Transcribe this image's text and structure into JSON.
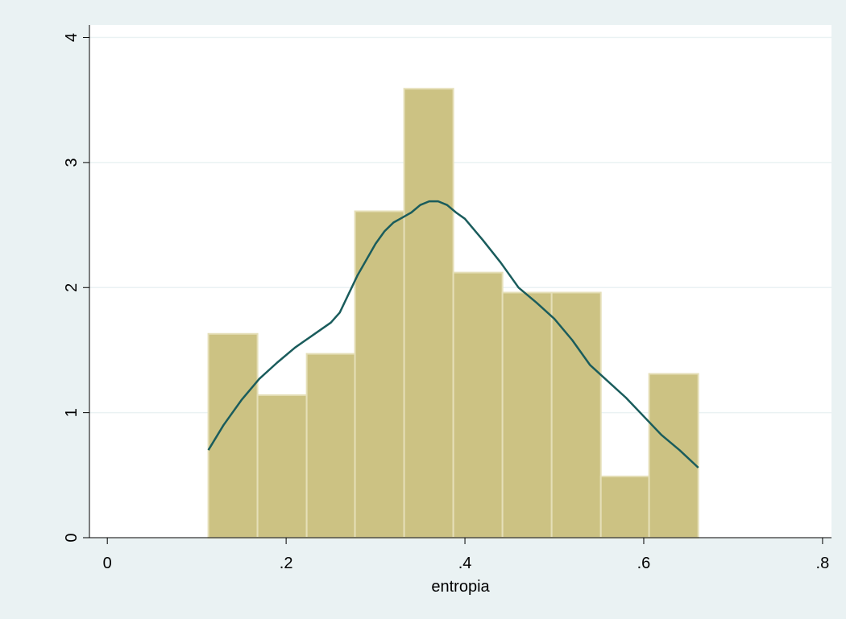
{
  "chart_data": {
    "type": "bar",
    "subtype": "histogram-with-density",
    "title": "",
    "xlabel": "entropia",
    "ylabel": "",
    "xlim": [
      -0.02,
      0.81
    ],
    "ylim": [
      0,
      4.1
    ],
    "x_ticks": [
      {
        "value": 0,
        "label": "0"
      },
      {
        "value": 0.2,
        "label": ".2"
      },
      {
        "value": 0.4,
        "label": ".4"
      },
      {
        "value": 0.6,
        "label": ".6"
      },
      {
        "value": 0.8,
        "label": ".8"
      }
    ],
    "y_ticks": [
      {
        "value": 0,
        "label": "0"
      },
      {
        "value": 1,
        "label": "1"
      },
      {
        "value": 2,
        "label": "2"
      },
      {
        "value": 3,
        "label": "3"
      },
      {
        "value": 4,
        "label": "4"
      }
    ],
    "grid": true,
    "legend": "none",
    "bins": [
      {
        "x0": 0.113,
        "x1": 0.168,
        "value": 1.63
      },
      {
        "x0": 0.168,
        "x1": 0.223,
        "value": 1.14
      },
      {
        "x0": 0.223,
        "x1": 0.277,
        "value": 1.47
      },
      {
        "x0": 0.277,
        "x1": 0.332,
        "value": 2.61
      },
      {
        "x0": 0.332,
        "x1": 0.387,
        "value": 3.59
      },
      {
        "x0": 0.387,
        "x1": 0.442,
        "value": 2.12
      },
      {
        "x0": 0.442,
        "x1": 0.497,
        "value": 1.96
      },
      {
        "x0": 0.497,
        "x1": 0.552,
        "value": 1.96
      },
      {
        "x0": 0.552,
        "x1": 0.606,
        "value": 0.49
      },
      {
        "x0": 0.606,
        "x1": 0.661,
        "value": 1.31
      }
    ],
    "density_curve": {
      "x": [
        0.113,
        0.13,
        0.15,
        0.17,
        0.19,
        0.21,
        0.23,
        0.25,
        0.26,
        0.28,
        0.3,
        0.31,
        0.32,
        0.33,
        0.34,
        0.35,
        0.36,
        0.37,
        0.38,
        0.39,
        0.4,
        0.42,
        0.44,
        0.46,
        0.48,
        0.5,
        0.52,
        0.54,
        0.56,
        0.58,
        0.6,
        0.62,
        0.64,
        0.661
      ],
      "y": [
        0.7,
        0.9,
        1.1,
        1.27,
        1.4,
        1.52,
        1.62,
        1.72,
        1.8,
        2.1,
        2.35,
        2.45,
        2.52,
        2.56,
        2.6,
        2.66,
        2.69,
        2.69,
        2.66,
        2.6,
        2.55,
        2.38,
        2.2,
        2.0,
        1.88,
        1.75,
        1.58,
        1.38,
        1.25,
        1.12,
        0.97,
        0.82,
        0.7,
        0.56
      ]
    },
    "colors": {
      "background": "#EAF2F3",
      "plot_background": "#FFFFFF",
      "bar_fill": "#CCC283",
      "bar_edge": "#E5DFB8",
      "curve": "#1A5C5C",
      "grid": "#EAF2F3",
      "axis": "#000000"
    }
  }
}
